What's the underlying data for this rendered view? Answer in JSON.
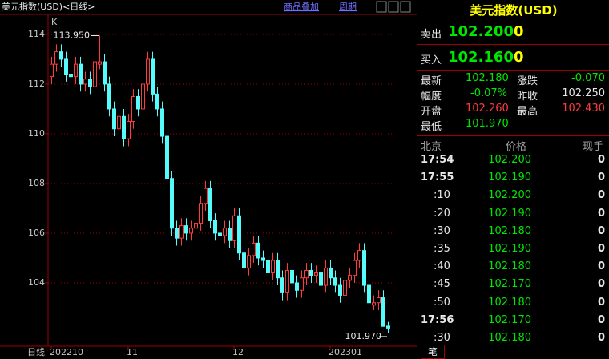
{
  "toolbar": {
    "title": "美元指数(USD)<日线>",
    "overlay": "商品叠加",
    "period": "周期"
  },
  "chart_data": {
    "type": "candlestick",
    "corner_label": "K",
    "period_label": "日线",
    "categories": [
      "202210",
      null,
      null,
      null,
      null,
      null,
      null,
      null,
      null,
      null,
      null,
      null,
      null,
      null,
      null,
      null,
      "11",
      null,
      null,
      null,
      null,
      null,
      null,
      null,
      null,
      null,
      null,
      null,
      null,
      null,
      null,
      null,
      null,
      null,
      null,
      null,
      null,
      null,
      "12",
      null,
      null,
      null,
      null,
      null,
      null,
      null,
      null,
      null,
      null,
      null,
      null,
      null,
      null,
      null,
      null,
      null,
      null,
      null,
      "202301",
      null,
      null,
      null,
      null,
      null,
      null,
      null,
      null,
      null,
      null,
      null,
      null
    ],
    "open": [
      112.3,
      112.8,
      113.3,
      113.0,
      112.4,
      112.3,
      112.8,
      112.0,
      112.2,
      111.9,
      112.8,
      112.9,
      112.0,
      111.0,
      110.2,
      110.7,
      109.8,
      110.5,
      111.5,
      111.0,
      112.0,
      113.0,
      111.6,
      111.0,
      109.9,
      108.2,
      106.2,
      105.8,
      106.3,
      106.0,
      106.2,
      106.4,
      107.2,
      107.8,
      106.5,
      106.0,
      105.9,
      106.2,
      105.7,
      106.7,
      105.2,
      104.6,
      105.1,
      105.6,
      105.0,
      104.9,
      104.4,
      104.9,
      104.2,
      103.6,
      104.5,
      104.0,
      103.7,
      104.2,
      104.5,
      104.3,
      104.4,
      103.9,
      104.6,
      104.2,
      103.9,
      103.5,
      104.1,
      104.3,
      104.9,
      105.3,
      103.9,
      103.1,
      103.2,
      103.4,
      102.26
    ],
    "high": [
      113.1,
      113.6,
      113.6,
      113.3,
      112.7,
      113.1,
      113.1,
      112.5,
      112.5,
      113.2,
      113.95,
      113.2,
      112.3,
      111.3,
      111.0,
      111.0,
      110.8,
      111.8,
      111.8,
      112.3,
      113.3,
      113.3,
      111.9,
      111.3,
      110.2,
      108.5,
      106.5,
      106.6,
      106.6,
      106.5,
      106.7,
      107.5,
      108.1,
      108.1,
      106.8,
      106.2,
      106.5,
      106.5,
      107.0,
      107.0,
      105.5,
      105.4,
      105.9,
      105.9,
      105.3,
      105.2,
      105.2,
      105.2,
      104.5,
      104.8,
      104.8,
      104.3,
      104.5,
      104.8,
      104.8,
      104.7,
      104.7,
      104.9,
      104.9,
      104.5,
      104.2,
      104.4,
      104.6,
      105.2,
      105.6,
      105.6,
      104.2,
      103.5,
      103.7,
      103.7,
      102.43
    ],
    "low": [
      112.0,
      112.5,
      112.7,
      112.1,
      112.0,
      112.0,
      111.7,
      111.7,
      111.6,
      111.6,
      112.6,
      111.7,
      110.7,
      109.9,
      109.9,
      109.5,
      109.5,
      110.2,
      110.7,
      110.7,
      111.7,
      111.3,
      110.7,
      109.6,
      107.9,
      105.9,
      105.5,
      105.5,
      105.7,
      105.7,
      105.9,
      106.1,
      106.9,
      106.2,
      105.7,
      105.6,
      105.6,
      105.4,
      105.4,
      104.9,
      104.3,
      104.3,
      104.8,
      104.7,
      104.6,
      104.1,
      104.1,
      103.9,
      103.3,
      103.3,
      103.7,
      103.4,
      103.4,
      103.9,
      104.0,
      104.0,
      103.6,
      103.6,
      103.9,
      103.6,
      103.2,
      103.2,
      103.8,
      104.0,
      104.6,
      103.6,
      102.9,
      102.9,
      102.9,
      102.3,
      101.97
    ],
    "close": [
      112.8,
      113.3,
      113.0,
      112.4,
      112.3,
      112.8,
      112.0,
      112.2,
      111.9,
      112.9,
      112.9,
      112.0,
      111.0,
      110.2,
      110.7,
      109.8,
      110.5,
      111.5,
      111.0,
      112.0,
      113.0,
      111.6,
      111.0,
      109.9,
      108.2,
      106.2,
      105.8,
      106.3,
      106.0,
      106.2,
      106.4,
      107.2,
      107.8,
      106.5,
      106.0,
      105.9,
      106.2,
      105.7,
      106.7,
      105.2,
      104.6,
      105.1,
      105.6,
      105.0,
      104.9,
      104.4,
      104.9,
      104.2,
      103.6,
      104.5,
      104.0,
      103.7,
      104.2,
      104.5,
      104.3,
      104.4,
      103.9,
      104.6,
      104.2,
      103.9,
      103.5,
      104.1,
      104.3,
      104.9,
      105.3,
      103.9,
      103.2,
      103.2,
      103.4,
      102.25,
      102.18
    ],
    "up_color": "#ff3c3c",
    "down_color": "#54fcfc",
    "ylim": [
      101.45,
      114.74
    ],
    "yticks": [
      104,
      106,
      108,
      110,
      112,
      114
    ],
    "grid": true,
    "annotations": [
      {
        "label": "113.950",
        "value": 113.95
      },
      {
        "label": "101.970",
        "value": 101.97
      }
    ]
  },
  "quote": {
    "title": "美元指数(USD)",
    "sell_label": "卖出",
    "sell_price": "102.200",
    "sell_qty": "0",
    "buy_label": "买入",
    "buy_price": "102.160",
    "buy_qty": "0",
    "stats": [
      [
        "最新",
        "102.180",
        "涨跌",
        "-0.070"
      ],
      [
        "幅度",
        "-0.07%",
        "昨收",
        "102.250"
      ],
      [
        "开盘",
        "102.260",
        "最高",
        "102.430"
      ],
      [
        "最低",
        "101.970",
        null,
        null
      ]
    ]
  },
  "ticks": {
    "headers": [
      "北京",
      "价格",
      "现手"
    ],
    "rows": [
      [
        "17:54",
        "102.200",
        "0"
      ],
      [
        "17:55",
        "102.190",
        "0"
      ],
      [
        ":10",
        "102.200",
        "0"
      ],
      [
        ":20",
        "102.190",
        "0"
      ],
      [
        ":30",
        "102.180",
        "0"
      ],
      [
        ":35",
        "102.190",
        "0"
      ],
      [
        ":40",
        "102.180",
        "0"
      ],
      [
        ":45",
        "102.170",
        "0"
      ],
      [
        ":50",
        "102.180",
        "0"
      ],
      [
        "17:56",
        "102.170",
        "0"
      ],
      [
        ":30",
        "102.180",
        "0"
      ]
    ],
    "tab": "笔"
  }
}
